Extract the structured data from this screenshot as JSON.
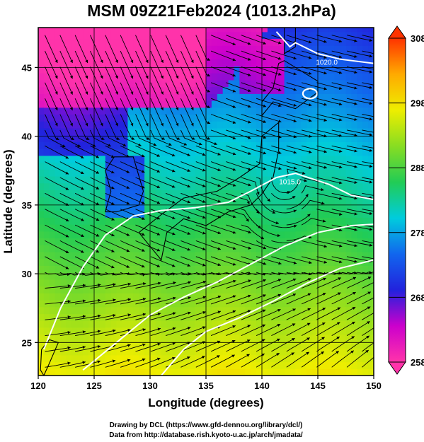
{
  "chart_data": {
    "type": "heatmap",
    "title": "MSM 09Z21Feb2024 (1013.2hPa)",
    "xlabel": "Longitude (degrees)",
    "ylabel": "Latitude  (degrees)",
    "xlim": [
      120,
      150
    ],
    "ylim": [
      22.6,
      47.9
    ],
    "x_ticks": [
      120,
      125,
      130,
      135,
      140,
      145,
      150
    ],
    "y_ticks": [
      25,
      30,
      35,
      40,
      45
    ],
    "grid": true,
    "overlays": [
      "streamlines",
      "coastlines",
      "white contours"
    ],
    "colorbar": {
      "min": 258,
      "max": 308,
      "ticks": [
        258,
        268,
        278,
        288,
        298,
        308
      ],
      "colors": [
        "#ff33aa",
        "#cc00cc",
        "#2222dd",
        "#1166ee",
        "#00ccdd",
        "#22cc55",
        "#88dd22",
        "#eeee00",
        "#ffaa00",
        "#ff3300"
      ]
    },
    "contour_labels": [
      {
        "text": "1020.0",
        "lon": 145.8,
        "lat": 45.2
      },
      {
        "text": "1015.0",
        "lon": 142.5,
        "lat": 36.5
      }
    ]
  },
  "credits": {
    "line1": "Drawing by DCL (https://www.gfd-dennou.org/library/dcl/)",
    "line2": "Data from http://database.rish.kyoto-u.ac.jp/arch/jmadata/"
  }
}
